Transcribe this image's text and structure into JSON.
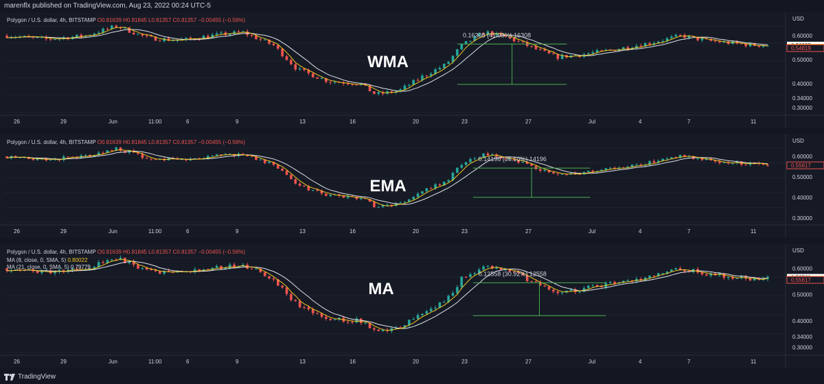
{
  "header": {
    "published": "marenflx published on TradingView.com, Aug 23, 2022 00:24 UTC-5"
  },
  "footer": {
    "brand": "TradingView"
  },
  "colors": {
    "bg": "#131722",
    "panel": "#161a25",
    "up": "#26a69a",
    "down": "#ef5350",
    "ma_fast": "#f3c623",
    "ma_slow": "#e0e3eb",
    "grid": "#1f2330",
    "text": "#d1d4dc",
    "measure": "#4caf50"
  },
  "chart_data": [
    {
      "type": "candlestick",
      "overlay_title": "WMA",
      "instrument": "Polygon / U.S. dollar, 4h, BITSTAMP",
      "ohlc": {
        "o": "O0.81639",
        "h": "H0.81845",
        "l": "L0.81357",
        "c": "C0.81357",
        "chg": "−0.00455 (−0.56%)"
      },
      "indicator_legend": [],
      "ylabel": "USD",
      "ylim": [
        0.28,
        0.64
      ],
      "yticks": [
        "0.60000",
        "0.50000",
        "0.40000",
        "0.34000",
        "0.30000"
      ],
      "price_tags": [
        {
          "value": 0.56035,
          "label": "0.56035",
          "style": "white"
        },
        {
          "value": 0.55153,
          "label": "0.55153",
          "style": "yellow"
        },
        {
          "value": 0.54819,
          "label": "0.54819",
          "style": "red"
        }
      ],
      "measure": {
        "label": "0.16308 (41.03%) 16308",
        "top": 0.565,
        "bottom": 0.397,
        "start": 0.58,
        "end": 0.72
      },
      "x_ticks": [
        "26",
        "29",
        "Jun",
        "11:00",
        "6",
        "9",
        "13",
        "16",
        "20",
        "23",
        "27",
        "Jul",
        "4",
        "7",
        "11"
      ],
      "price_path": [
        [
          0,
          0.6
        ],
        [
          0.05,
          0.585
        ],
        [
          0.1,
          0.6
        ],
        [
          0.14,
          0.64
        ],
        [
          0.18,
          0.59
        ],
        [
          0.22,
          0.58
        ],
        [
          0.26,
          0.6
        ],
        [
          0.3,
          0.615
        ],
        [
          0.34,
          0.56
        ],
        [
          0.37,
          0.46
        ],
        [
          0.41,
          0.41
        ],
        [
          0.45,
          0.4
        ],
        [
          0.47,
          0.355
        ],
        [
          0.5,
          0.37
        ],
        [
          0.53,
          0.43
        ],
        [
          0.56,
          0.48
        ],
        [
          0.58,
          0.56
        ],
        [
          0.61,
          0.615
        ],
        [
          0.64,
          0.59
        ],
        [
          0.67,
          0.55
        ],
        [
          0.7,
          0.51
        ],
        [
          0.73,
          0.52
        ],
        [
          0.77,
          0.54
        ],
        [
          0.82,
          0.57
        ],
        [
          0.86,
          0.6
        ],
        [
          0.89,
          0.58
        ],
        [
          0.92,
          0.57
        ],
        [
          0.95,
          0.56
        ]
      ]
    },
    {
      "type": "candlestick",
      "overlay_title": "EMA",
      "instrument": "Polygon / U.S. dollar, 4h, BITSTAMP",
      "ohlc": {
        "o": "O0.81639",
        "h": "H0.81845",
        "l": "L0.81357",
        "c": "C0.81357",
        "chg": "−0.00455 (−0.56%)"
      },
      "indicator_legend": [],
      "ylabel": "USD",
      "ylim": [
        0.28,
        0.64
      ],
      "yticks": [
        "0.60000",
        "0.50000",
        "0.40000",
        "0.30000"
      ],
      "price_tags": [
        {
          "value": 0.55617,
          "label": "0.55617",
          "style": "red"
        }
      ],
      "measure": {
        "label": "0.14196 (36.10%) 14196",
        "top": 0.543,
        "bottom": 0.401,
        "start": 0.6,
        "end": 0.75
      },
      "x_ticks": [
        "26",
        "29",
        "Jun",
        "11:00",
        "6",
        "9",
        "13",
        "16",
        "20",
        "23",
        "27",
        "Jul",
        "4",
        "7",
        "11"
      ],
      "price_path": [
        [
          0,
          0.6
        ],
        [
          0.05,
          0.585
        ],
        [
          0.1,
          0.6
        ],
        [
          0.14,
          0.64
        ],
        [
          0.18,
          0.59
        ],
        [
          0.22,
          0.58
        ],
        [
          0.26,
          0.6
        ],
        [
          0.3,
          0.615
        ],
        [
          0.34,
          0.56
        ],
        [
          0.37,
          0.46
        ],
        [
          0.41,
          0.41
        ],
        [
          0.45,
          0.4
        ],
        [
          0.47,
          0.355
        ],
        [
          0.5,
          0.37
        ],
        [
          0.53,
          0.43
        ],
        [
          0.56,
          0.48
        ],
        [
          0.58,
          0.56
        ],
        [
          0.61,
          0.615
        ],
        [
          0.64,
          0.59
        ],
        [
          0.67,
          0.55
        ],
        [
          0.7,
          0.51
        ],
        [
          0.73,
          0.52
        ],
        [
          0.77,
          0.54
        ],
        [
          0.82,
          0.57
        ],
        [
          0.86,
          0.6
        ],
        [
          0.89,
          0.58
        ],
        [
          0.92,
          0.57
        ],
        [
          0.95,
          0.56
        ]
      ]
    },
    {
      "type": "candlestick",
      "overlay_title": "MA",
      "instrument": "Polygon / U.S. dollar, 4h, BITSTAMP",
      "ohlc": {
        "o": "O0.81639",
        "h": "H0.81845",
        "l": "L0.81357",
        "c": "C0.81357",
        "chg": "−0.00455 (−0.56%)"
      },
      "indicator_legend": [
        {
          "label": "MA (8, close, 0, SMA, 5)",
          "value": "0.80022",
          "color": "#f3c623"
        },
        {
          "label": "MA (21, close, 0, SMA, 5)",
          "value": "0.79779",
          "color": "#e0e3eb"
        }
      ],
      "ylabel": "USD",
      "ylim": [
        0.28,
        0.64
      ],
      "yticks": [
        "0.60000",
        "0.50000",
        "0.40000",
        "0.34000",
        "0.30000"
      ],
      "price_tags": [
        {
          "value": 0.56561,
          "label": "0.56561",
          "style": "white"
        },
        {
          "value": 0.55821,
          "label": "0.55821",
          "style": "yellow"
        },
        {
          "value": 0.55617,
          "label": "0.55617",
          "style": "red"
        }
      ],
      "measure": {
        "label": "0.12558 (30.92%) 12558",
        "top": 0.545,
        "bottom": 0.42,
        "start": 0.6,
        "end": 0.77
      },
      "x_ticks": [
        "26",
        "29",
        "Jun",
        "11:00",
        "6",
        "9",
        "13",
        "16",
        "20",
        "23",
        "27",
        "Jul",
        "4",
        "7",
        "11"
      ],
      "price_path": [
        [
          0,
          0.6
        ],
        [
          0.05,
          0.585
        ],
        [
          0.1,
          0.6
        ],
        [
          0.14,
          0.64
        ],
        [
          0.18,
          0.59
        ],
        [
          0.22,
          0.58
        ],
        [
          0.26,
          0.6
        ],
        [
          0.3,
          0.615
        ],
        [
          0.34,
          0.56
        ],
        [
          0.37,
          0.46
        ],
        [
          0.41,
          0.41
        ],
        [
          0.45,
          0.4
        ],
        [
          0.47,
          0.355
        ],
        [
          0.5,
          0.37
        ],
        [
          0.53,
          0.43
        ],
        [
          0.56,
          0.48
        ],
        [
          0.58,
          0.56
        ],
        [
          0.61,
          0.615
        ],
        [
          0.64,
          0.59
        ],
        [
          0.67,
          0.55
        ],
        [
          0.7,
          0.51
        ],
        [
          0.73,
          0.52
        ],
        [
          0.77,
          0.54
        ],
        [
          0.82,
          0.57
        ],
        [
          0.86,
          0.6
        ],
        [
          0.89,
          0.58
        ],
        [
          0.92,
          0.57
        ],
        [
          0.95,
          0.56
        ]
      ]
    }
  ]
}
